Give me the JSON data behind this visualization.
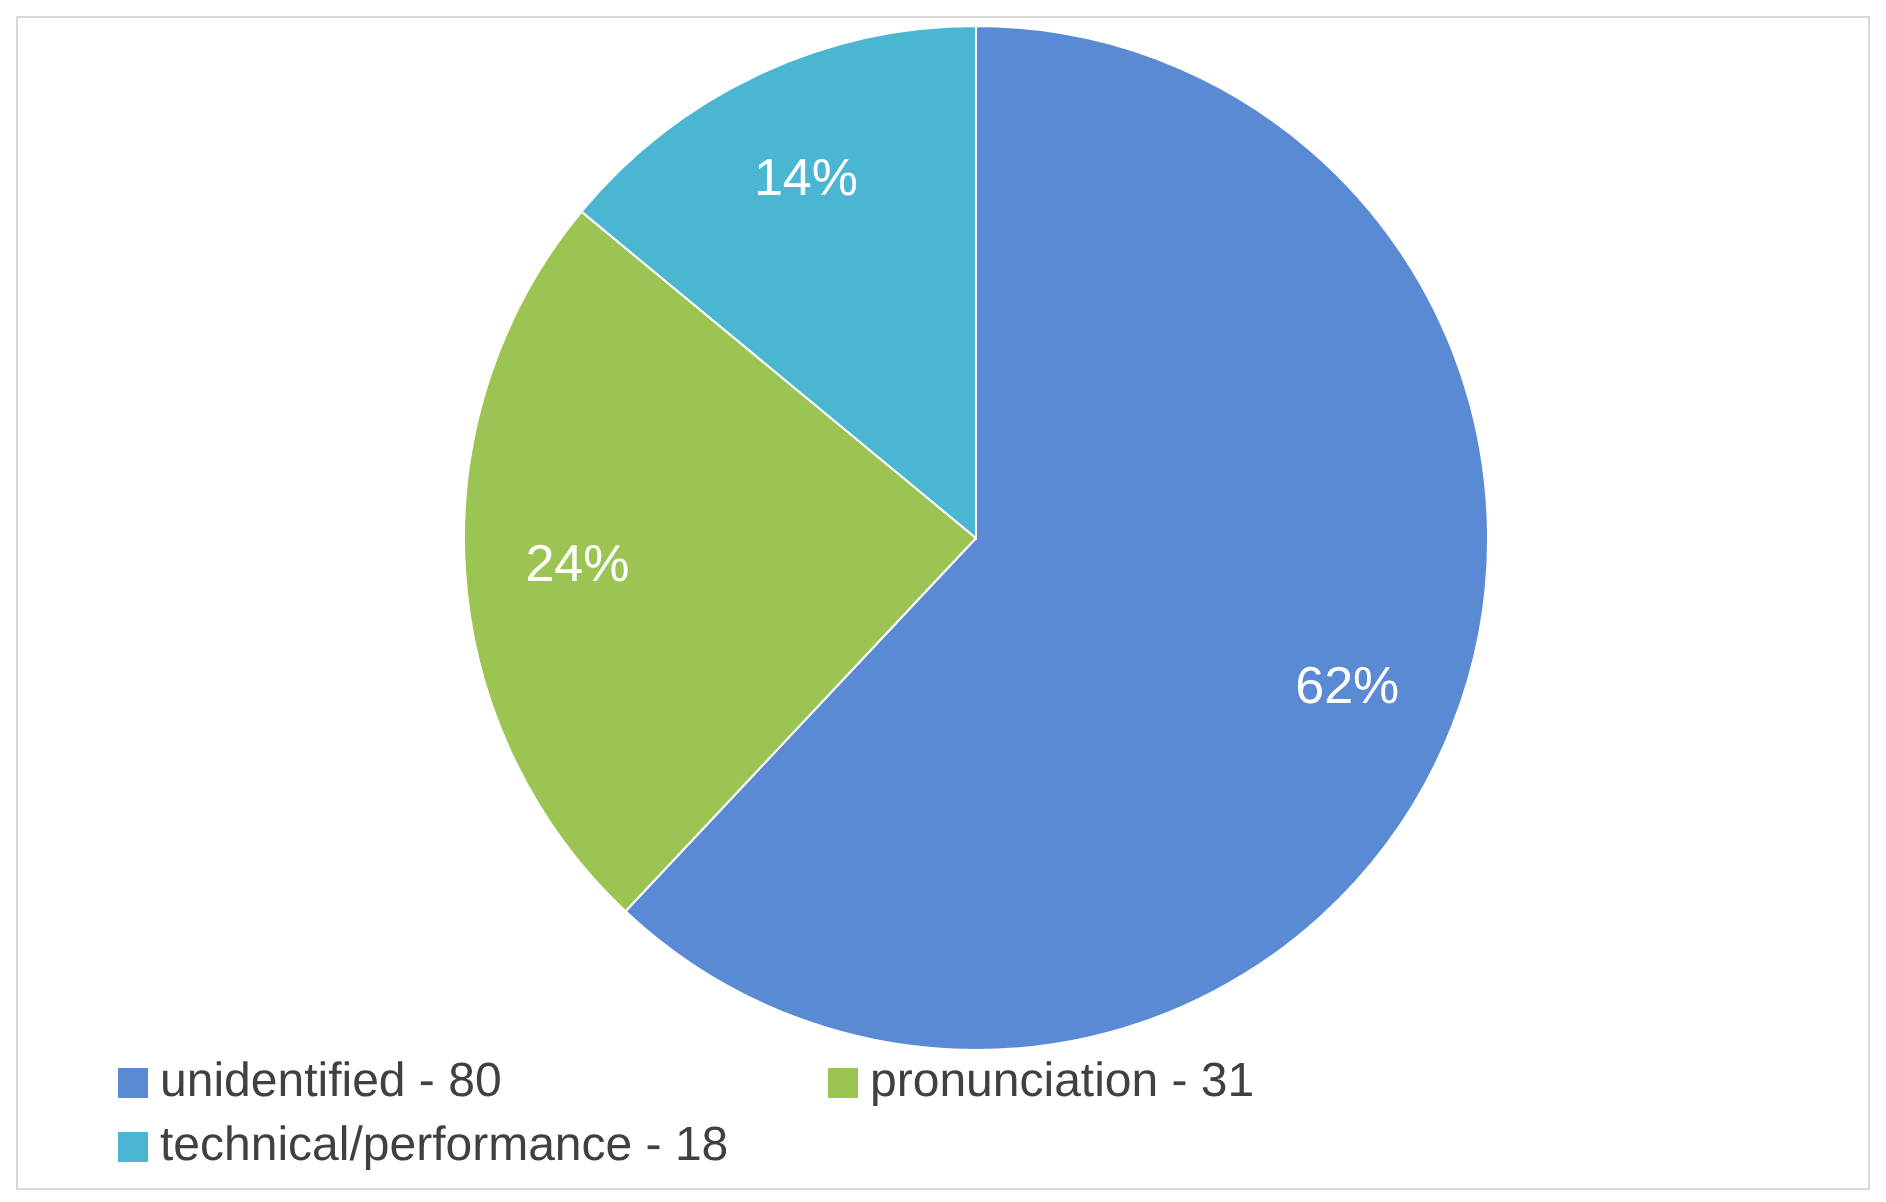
{
  "chart_data": {
    "type": "pie",
    "categories": [
      "unidentified - 80",
      "pronunciation - 31",
      "technical/performance - 18"
    ],
    "values": [
      62,
      24,
      14
    ],
    "value_labels": [
      "62%",
      "24%",
      "14%"
    ],
    "colors": [
      "#5a8ad4",
      "#9cc453",
      "#4ab6d2"
    ],
    "legend": "bottom"
  }
}
